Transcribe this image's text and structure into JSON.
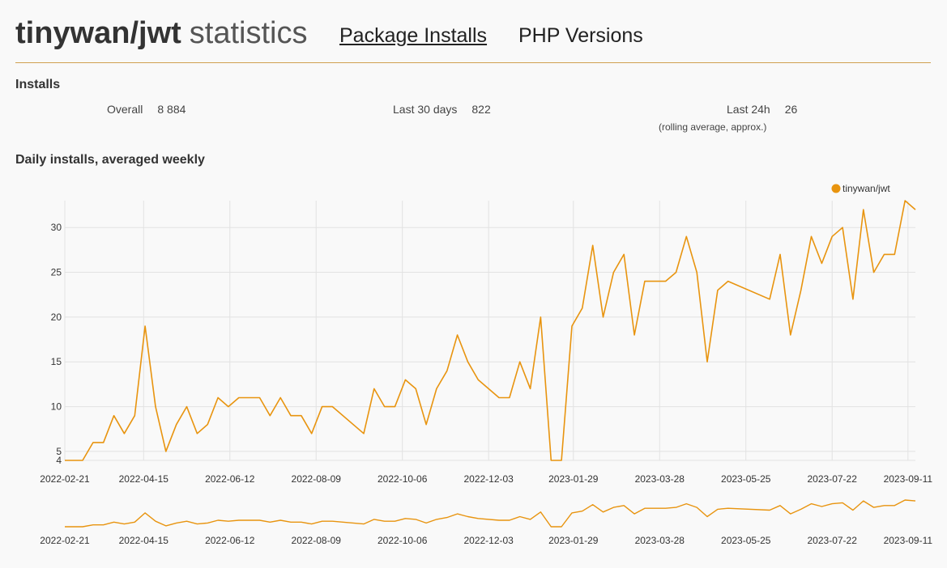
{
  "header": {
    "package": "tinywan/jwt",
    "title_suffix": "statistics",
    "nav": [
      {
        "label": "Package Installs",
        "active": true
      },
      {
        "label": "PHP Versions",
        "active": false
      }
    ]
  },
  "installs": {
    "heading": "Installs",
    "overall_label": "Overall",
    "overall_value": "8 884",
    "last30_label": "Last 30 days",
    "last30_value": "822",
    "last24_label": "Last 24h",
    "last24_value": "26",
    "last24_note": "(rolling average, approx.)"
  },
  "chart_heading": "Daily installs, averaged weekly",
  "colors": {
    "series": "#e8940f",
    "grid": "#e2e2e2"
  },
  "chart_data": {
    "type": "line",
    "title": "Daily installs, averaged weekly",
    "legend": [
      "tinywan/jwt"
    ],
    "legend_position": "top-right",
    "ylim": [
      4,
      33
    ],
    "yticks": [
      4,
      5,
      10,
      15,
      20,
      25,
      30
    ],
    "x_tick_labels": [
      "2022-02-21",
      "2022-04-15",
      "2022-06-12",
      "2022-08-09",
      "2022-10-06",
      "2022-12-03",
      "2023-01-29",
      "2023-03-28",
      "2023-05-25",
      "2023-07-22",
      "2023-09-11"
    ],
    "series": [
      {
        "name": "tinywan/jwt",
        "x": [
          "2022-02-21",
          "2022-03-05",
          "2022-03-12",
          "2022-03-19",
          "2022-03-26",
          "2022-04-02",
          "2022-04-09",
          "2022-04-16",
          "2022-04-23",
          "2022-04-30",
          "2022-05-07",
          "2022-05-14",
          "2022-05-21",
          "2022-05-28",
          "2022-06-04",
          "2022-06-11",
          "2022-06-18",
          "2022-06-25",
          "2022-07-02",
          "2022-07-09",
          "2022-07-16",
          "2022-07-23",
          "2022-07-30",
          "2022-08-06",
          "2022-08-13",
          "2022-08-20",
          "2022-09-10",
          "2022-09-17",
          "2022-09-24",
          "2022-10-01",
          "2022-10-08",
          "2022-10-15",
          "2022-10-22",
          "2022-10-29",
          "2022-11-05",
          "2022-11-12",
          "2022-11-19",
          "2022-11-26",
          "2022-12-10",
          "2022-12-17",
          "2022-12-24",
          "2022-12-31",
          "2023-01-07",
          "2023-01-14",
          "2023-01-21",
          "2023-01-28",
          "2023-02-04",
          "2023-02-11",
          "2023-02-18",
          "2023-02-25",
          "2023-03-04",
          "2023-03-11",
          "2023-03-18",
          "2023-03-25",
          "2023-04-01",
          "2023-04-08",
          "2023-04-15",
          "2023-04-22",
          "2023-04-29",
          "2023-05-06",
          "2023-05-13",
          "2023-06-10",
          "2023-06-17",
          "2023-06-24",
          "2023-07-01",
          "2023-07-08",
          "2023-07-15",
          "2023-07-22",
          "2023-07-29",
          "2023-08-05",
          "2023-08-12",
          "2023-08-19",
          "2023-08-26",
          "2023-09-02",
          "2023-09-09",
          "2023-09-16"
        ],
        "values": [
          4,
          4,
          6,
          6,
          9,
          7,
          9,
          19,
          10,
          5,
          8,
          10,
          7,
          8,
          11,
          10,
          11,
          11,
          11,
          9,
          11,
          9,
          9,
          7,
          10,
          10,
          7,
          12,
          10,
          10,
          13,
          12,
          8,
          12,
          14,
          18,
          15,
          13,
          11,
          11,
          15,
          12,
          20,
          4,
          4,
          19,
          21,
          28,
          20,
          25,
          27,
          18,
          24,
          24,
          24,
          25,
          29,
          25,
          15,
          23,
          24,
          22,
          27,
          18,
          23,
          29,
          26,
          29,
          30,
          22,
          32,
          25,
          27,
          27,
          33,
          32
        ]
      }
    ]
  }
}
